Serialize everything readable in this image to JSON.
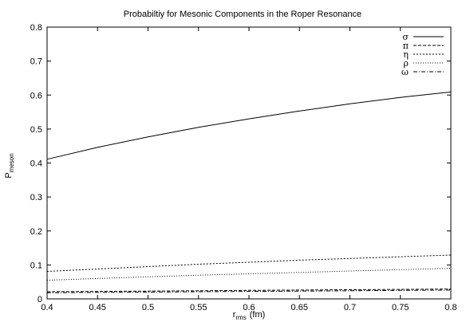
{
  "chart_data": {
    "type": "line",
    "title": "Probabiltiy for Mesonic Components in the Roper Resonance",
    "xlabel": {
      "main": "r",
      "sub": "rms",
      "unit": "(fm)"
    },
    "ylabel": {
      "main": "P",
      "sub": "meson"
    },
    "xlim": [
      0.4,
      0.8
    ],
    "ylim": [
      0,
      0.8
    ],
    "xticks": [
      "0.4",
      "0.45",
      "0.5",
      "0.55",
      "0.6",
      "0.65",
      "0.7",
      "0.75",
      "0.8"
    ],
    "yticks": [
      "0",
      "0.1",
      "0.2",
      "0.3",
      "0.4",
      "0.5",
      "0.6",
      "0.7",
      "0.8"
    ],
    "legend_position": "top-right",
    "grid": false,
    "x": [
      0.4,
      0.45,
      0.5,
      0.55,
      0.6,
      0.65,
      0.7,
      0.75,
      0.8
    ],
    "series": [
      {
        "name": "σ",
        "dash": "solid",
        "values": [
          0.411,
          0.446,
          0.477,
          0.505,
          0.53,
          0.553,
          0.574,
          0.593,
          0.609
        ]
      },
      {
        "name": "π",
        "dash": "dashed",
        "values": [
          0.021,
          0.022,
          0.023,
          0.024,
          0.025,
          0.026,
          0.027,
          0.028,
          0.029
        ]
      },
      {
        "name": "η",
        "dash": "dotted",
        "values": [
          0.081,
          0.088,
          0.095,
          0.102,
          0.108,
          0.114,
          0.119,
          0.124,
          0.129
        ]
      },
      {
        "name": "ρ",
        "dash": "dotted2",
        "values": [
          0.055,
          0.06,
          0.065,
          0.07,
          0.074,
          0.078,
          0.082,
          0.086,
          0.09
        ]
      },
      {
        "name": "ω",
        "dash": "dashdot",
        "values": [
          0.018,
          0.019,
          0.02,
          0.021,
          0.022,
          0.023,
          0.024,
          0.025,
          0.026
        ]
      }
    ]
  }
}
